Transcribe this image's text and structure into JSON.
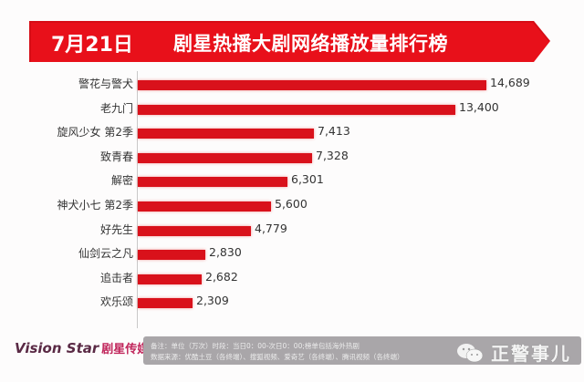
{
  "banner": {
    "date": "7月21日",
    "title": "剧星热播大剧网络播放量排行榜",
    "color": "#e8101a"
  },
  "chart_data": {
    "type": "bar",
    "orientation": "horizontal",
    "title": "7月21日 剧星热播大剧网络播放量排行榜",
    "unit": "万次",
    "categories": [
      "警花与警犬",
      "老九门",
      "旋风少女 第2季",
      "致青春",
      "解密",
      "神犬小七 第2季",
      "好先生",
      "仙剑云之凡",
      "追击者",
      "欢乐颂"
    ],
    "values": [
      14689,
      13400,
      7413,
      7328,
      6301,
      5600,
      4779,
      2830,
      2682,
      2309
    ],
    "value_labels": [
      "14,689",
      "13,400",
      "7,413",
      "7,328",
      "6,301",
      "5,600",
      "4,779",
      "2,830",
      "2,682",
      "2,309"
    ],
    "bar_color": "#d9111b",
    "xlabel": "",
    "ylabel": "",
    "xlim": [
      0,
      15000
    ],
    "grid": false,
    "legend": null
  },
  "footer": {
    "logo_text": "Vision Star",
    "logo_cn": "剧星传媒",
    "note_line1": "备注：单位（万次）时段：当日0：00-次日0：00;榜单包括海外热剧",
    "note_line2": "数据来源：优酷土豆（各终端）、搜狐视频、爱奇艺（各终端）、腾讯视频（各终端）",
    "watermark": "正警事儿"
  }
}
